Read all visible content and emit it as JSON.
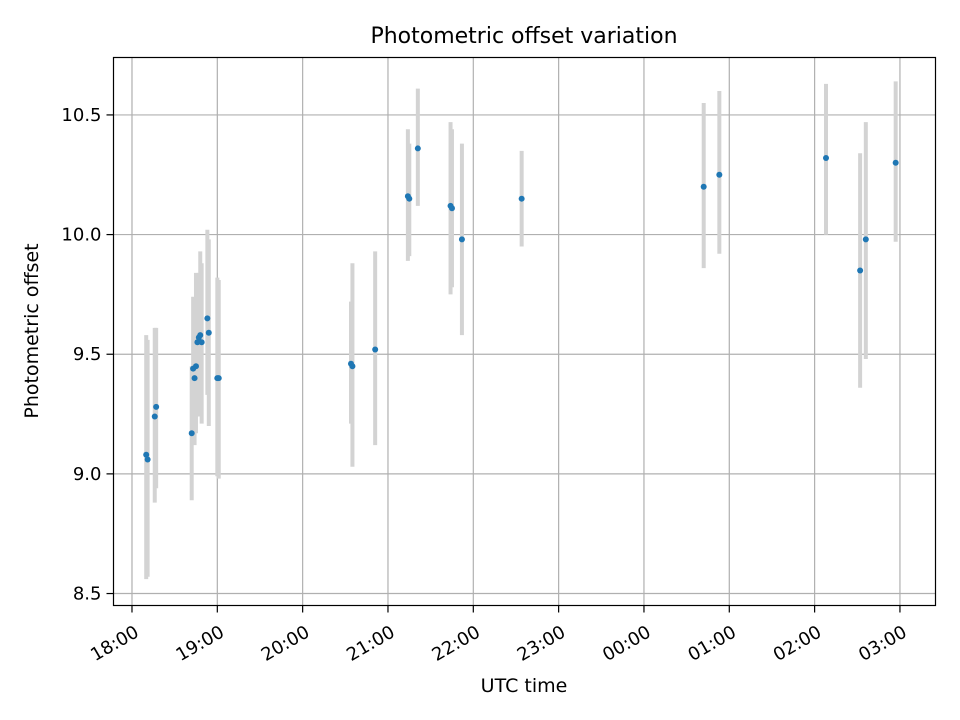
{
  "chart_data": {
    "type": "scatter",
    "title": "Photometric offset variation",
    "xlabel": "UTC time",
    "ylabel": "Photometric offset",
    "x_tick_labels": [
      "18:00",
      "19:00",
      "20:00",
      "21:00",
      "22:00",
      "23:00",
      "00:00",
      "01:00",
      "02:00",
      "03:00"
    ],
    "x_ticks": [
      "18:00",
      "19:00",
      "20:00",
      "21:00",
      "22:00",
      "23:00",
      "00:00",
      "01:00",
      "02:00",
      "03:00"
    ],
    "y_ticks": [
      8.5,
      9.0,
      9.5,
      10.0,
      10.5
    ],
    "y_tick_labels": [
      "8.5",
      "9.0",
      "9.5",
      "10.0",
      "10.5"
    ],
    "xlim": [
      "17:47",
      "03:25"
    ],
    "ylim": [
      8.45,
      10.74
    ],
    "grid": true,
    "colors": {
      "point": "#1f77b4",
      "errorbar": "#d3d3d3",
      "grid": "#b0b0b0"
    },
    "points": [
      {
        "x": "18:10",
        "y": 9.08,
        "low": 8.56,
        "high": 9.58
      },
      {
        "x": "18:11",
        "y": 9.06,
        "low": 8.57,
        "high": 9.56
      },
      {
        "x": "18:16",
        "y": 9.24,
        "low": 8.88,
        "high": 9.61
      },
      {
        "x": "18:17",
        "y": 9.28,
        "low": 8.94,
        "high": 9.61
      },
      {
        "x": "18:42",
        "y": 9.17,
        "low": 8.89,
        "high": 9.45
      },
      {
        "x": "18:43",
        "y": 9.44,
        "low": 9.17,
        "high": 9.74
      },
      {
        "x": "18:44",
        "y": 9.4,
        "low": 9.12,
        "high": 9.68
      },
      {
        "x": "18:45",
        "y": 9.45,
        "low": 9.17,
        "high": 9.84
      },
      {
        "x": "18:46",
        "y": 9.55,
        "low": 9.25,
        "high": 9.79
      },
      {
        "x": "18:47",
        "y": 9.57,
        "low": 9.24,
        "high": 9.84
      },
      {
        "x": "18:48",
        "y": 9.58,
        "low": 9.24,
        "high": 9.93
      },
      {
        "x": "18:49",
        "y": 9.55,
        "low": 9.21,
        "high": 9.88
      },
      {
        "x": "18:53",
        "y": 9.65,
        "low": 9.33,
        "high": 10.02
      },
      {
        "x": "18:54",
        "y": 9.59,
        "low": 9.2,
        "high": 9.98
      },
      {
        "x": "19:00",
        "y": 9.4,
        "low": 8.99,
        "high": 9.82
      },
      {
        "x": "19:01",
        "y": 9.4,
        "low": 8.98,
        "high": 9.81
      },
      {
        "x": "20:34",
        "y": 9.46,
        "low": 9.21,
        "high": 9.72
      },
      {
        "x": "20:35",
        "y": 9.45,
        "low": 9.03,
        "high": 9.88
      },
      {
        "x": "20:51",
        "y": 9.52,
        "low": 9.12,
        "high": 9.93
      },
      {
        "x": "21:14",
        "y": 10.16,
        "low": 9.89,
        "high": 10.44
      },
      {
        "x": "21:15",
        "y": 10.15,
        "low": 9.91,
        "high": 10.38
      },
      {
        "x": "21:21",
        "y": 10.36,
        "low": 10.12,
        "high": 10.61
      },
      {
        "x": "21:44",
        "y": 10.12,
        "low": 9.75,
        "high": 10.47
      },
      {
        "x": "21:45",
        "y": 10.11,
        "low": 9.78,
        "high": 10.44
      },
      {
        "x": "21:52",
        "y": 9.98,
        "low": 9.58,
        "high": 10.38
      },
      {
        "x": "22:34",
        "y": 10.15,
        "low": 9.95,
        "high": 10.35
      },
      {
        "x": "00:42",
        "y": 10.2,
        "low": 9.86,
        "high": 10.55
      },
      {
        "x": "00:53",
        "y": 10.25,
        "low": 9.92,
        "high": 10.6
      },
      {
        "x": "02:08",
        "y": 10.32,
        "low": 10.0,
        "high": 10.63
      },
      {
        "x": "02:32",
        "y": 9.85,
        "low": 9.36,
        "high": 10.34
      },
      {
        "x": "02:36",
        "y": 9.98,
        "low": 9.48,
        "high": 10.47
      },
      {
        "x": "02:57",
        "y": 10.3,
        "low": 9.97,
        "high": 10.64
      }
    ]
  }
}
